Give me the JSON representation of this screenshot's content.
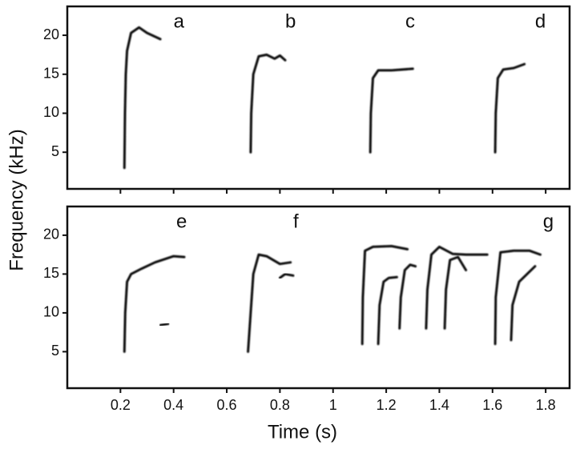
{
  "chart_data": [
    {
      "type": "line",
      "ylabel": "Frequency (kHz)",
      "xlim": [
        0,
        1.89
      ],
      "ylim": [
        0.3,
        23.7
      ],
      "yticks": [
        5,
        10,
        15,
        20
      ],
      "xticks": [
        0.2,
        0.4,
        0.6,
        0.8,
        1.0,
        1.2,
        1.4,
        1.6,
        1.8
      ],
      "show_xticklabels": false,
      "labels": [
        "a",
        "b",
        "c",
        "d"
      ],
      "series": [
        {
          "color": "#111111",
          "x": [
            0.215,
            0.217,
            0.22,
            0.225,
            0.24,
            0.27,
            0.3,
            0.35
          ],
          "y": [
            3,
            10,
            15,
            18,
            20.3,
            21,
            20.3,
            19.5
          ]
        },
        {
          "color": "#111111",
          "x": [
            0.69,
            0.692,
            0.7,
            0.72,
            0.75,
            0.78,
            0.8,
            0.82
          ],
          "y": [
            5,
            10,
            15,
            17.3,
            17.5,
            17,
            17.4,
            16.8
          ]
        },
        {
          "color": "#111111",
          "x": [
            1.14,
            1.142,
            1.15,
            1.17,
            1.22,
            1.3
          ],
          "y": [
            5,
            10,
            14.5,
            15.5,
            15.5,
            15.7
          ]
        },
        {
          "color": "#111111",
          "x": [
            1.61,
            1.612,
            1.62,
            1.64,
            1.68,
            1.72
          ],
          "y": [
            5,
            10,
            14.5,
            15.6,
            15.8,
            16.3
          ]
        }
      ]
    },
    {
      "type": "line",
      "xlabel": "Time (s)",
      "xlim": [
        0,
        1.89
      ],
      "ylim": [
        0.3,
        23.7
      ],
      "yticks": [
        5,
        10,
        15,
        20
      ],
      "xticks": [
        0.2,
        0.4,
        0.6,
        0.8,
        1.0,
        1.2,
        1.4,
        1.6,
        1.8
      ],
      "show_xticklabels": true,
      "labels": [
        "e",
        "f",
        "g"
      ],
      "series": [
        {
          "color": "#111111",
          "x": [
            0.215,
            0.218,
            0.225,
            0.24,
            0.28,
            0.33,
            0.4,
            0.44
          ],
          "y": [
            5,
            10,
            14,
            15,
            15.7,
            16.5,
            17.3,
            17.2
          ]
        },
        {
          "color": "#111111",
          "x": [
            0.35,
            0.38
          ],
          "y": [
            8.4,
            8.6
          ]
        },
        {
          "color": "#111111",
          "x": [
            0.68,
            0.69,
            0.7,
            0.72,
            0.75,
            0.8,
            0.84
          ],
          "y": [
            5,
            10,
            15,
            17.5,
            17.3,
            16.3,
            16.5
          ]
        },
        {
          "color": "#111111",
          "x": [
            0.8,
            0.82,
            0.85
          ],
          "y": [
            14.5,
            15,
            14.8
          ]
        },
        {
          "color": "#111111",
          "x": [
            1.11,
            1.112,
            1.12,
            1.15,
            1.22,
            1.28
          ],
          "y": [
            6,
            12,
            18,
            18.5,
            18.6,
            18.2
          ]
        },
        {
          "color": "#111111",
          "x": [
            1.17,
            1.175,
            1.19,
            1.21,
            1.24
          ],
          "y": [
            6,
            11,
            14,
            14.5,
            14.6
          ]
        },
        {
          "color": "#111111",
          "x": [
            1.25,
            1.255,
            1.27,
            1.29,
            1.31
          ],
          "y": [
            8,
            12,
            15.5,
            16.2,
            16
          ]
        },
        {
          "color": "#111111",
          "x": [
            1.35,
            1.355,
            1.37,
            1.4,
            1.45,
            1.5,
            1.58
          ],
          "y": [
            8,
            13,
            17.5,
            18.5,
            17.6,
            17.5,
            17.5
          ]
        },
        {
          "color": "#111111",
          "x": [
            1.42,
            1.425,
            1.44,
            1.47,
            1.5
          ],
          "y": [
            8,
            13,
            16.8,
            17.2,
            15.5
          ]
        },
        {
          "color": "#111111",
          "x": [
            1.61,
            1.612,
            1.63,
            1.68,
            1.74,
            1.78
          ],
          "y": [
            6,
            12,
            17.8,
            18,
            18,
            17.5
          ]
        },
        {
          "color": "#111111",
          "x": [
            1.67,
            1.675,
            1.7,
            1.73,
            1.76
          ],
          "y": [
            6.5,
            11,
            14,
            15,
            16
          ]
        }
      ]
    }
  ]
}
